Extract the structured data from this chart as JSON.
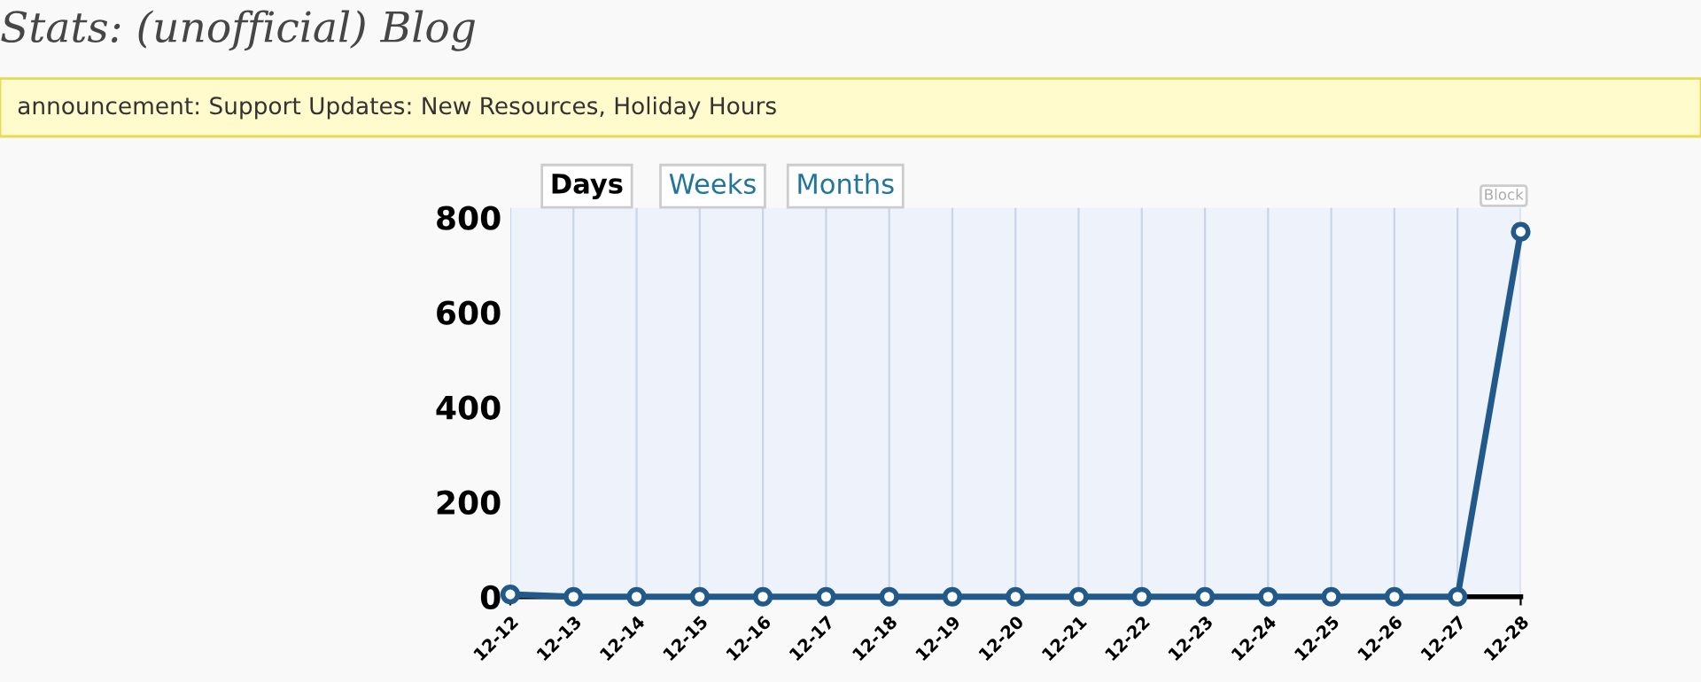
{
  "chart_data": {
    "type": "line",
    "title": "Stats: (unofficial) Blog",
    "subtitle": "announcement: Support Updates: New Resources, Holiday Hours",
    "annotations": [
      "Days",
      "Weeks",
      "Months",
      "Block"
    ],
    "categories": [
      "12-12",
      "12-13",
      "12-14",
      "12-15",
      "12-16",
      "12-17",
      "12-18",
      "12-19",
      "12-20",
      "12-21",
      "12-22",
      "12-23",
      "12-24",
      "12-25",
      "12-26",
      "12-27",
      "12-28"
    ],
    "series": [
      {
        "color": "#21598a",
        "values": [
          5,
          0,
          0,
          0,
          0,
          0,
          0,
          0,
          0,
          0,
          0,
          0,
          0,
          0,
          0,
          0,
          770
        ]
      }
    ],
    "ylim": [
      0,
      820
    ],
    "yticks": [
      0,
      200,
      400,
      600,
      800
    ],
    "grid": "x",
    "marker": "circle",
    "line_style": "solid",
    "legend": false
  }
}
